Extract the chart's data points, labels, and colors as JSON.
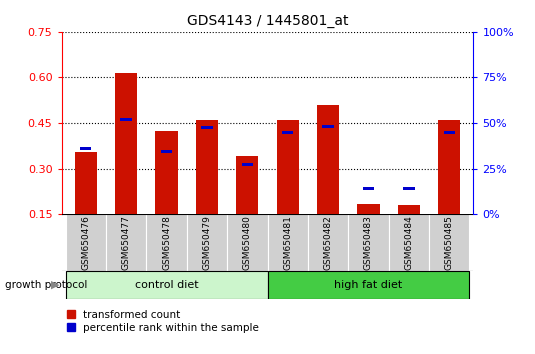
{
  "title": "GDS4143 / 1445801_at",
  "samples": [
    "GSM650476",
    "GSM650477",
    "GSM650478",
    "GSM650479",
    "GSM650480",
    "GSM650481",
    "GSM650482",
    "GSM650483",
    "GSM650484",
    "GSM650485"
  ],
  "red_values": [
    0.355,
    0.615,
    0.425,
    0.46,
    0.34,
    0.46,
    0.51,
    0.185,
    0.18,
    0.46
  ],
  "blue_values": [
    0.365,
    0.46,
    0.355,
    0.435,
    0.315,
    0.42,
    0.44,
    0.235,
    0.235,
    0.42
  ],
  "baseline": 0.15,
  "ylim_left": [
    0.15,
    0.75
  ],
  "yticks_left": [
    0.15,
    0.3,
    0.45,
    0.6,
    0.75
  ],
  "ytick_labels_left": [
    "0.15",
    "0.30",
    "0.45",
    "0.60",
    "0.75"
  ],
  "ylim_right": [
    0,
    100
  ],
  "yticks_right": [
    0,
    25,
    50,
    75,
    100
  ],
  "yticklabels_right": [
    "0%",
    "25%",
    "50%",
    "75%",
    "100%"
  ],
  "control_diet_indices": [
    0,
    1,
    2,
    3,
    4
  ],
  "high_fat_diet_indices": [
    5,
    6,
    7,
    8,
    9
  ],
  "control_color_light": "#ccf5cc",
  "high_fat_color": "#44cc44",
  "bar_color_red": "#cc1100",
  "bar_color_blue": "#0000cc",
  "tick_label_bg": "#d0d0d0",
  "bar_width": 0.55,
  "blue_bar_width": 0.28,
  "blue_bar_height": 0.01,
  "legend_red": "transformed count",
  "legend_blue": "percentile rank within the sample",
  "protocol_label": "growth protocol"
}
